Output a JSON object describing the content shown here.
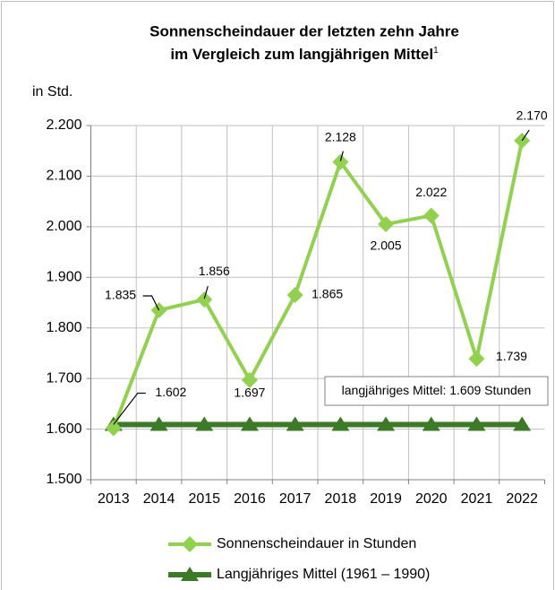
{
  "chart_data": {
    "type": "line",
    "title": [
      "Sonnenscheindauer der letzten zehn Jahre",
      "im Vergleich zum langjährigen Mittel"
    ],
    "title_footnote": "1",
    "y_label": "in Std.",
    "annotation": "langjähriges Mittel: 1.609 Stunden",
    "categories": [
      "2013",
      "2014",
      "2015",
      "2016",
      "2017",
      "2018",
      "2019",
      "2020",
      "2021",
      "2022"
    ],
    "series": [
      {
        "name": "Sonnenscheindauer in Stunden",
        "color": "#92d050",
        "marker": "diamond",
        "values": [
          1602,
          1835,
          1856,
          1697,
          1865,
          2128,
          2005,
          2022,
          1739,
          2170
        ],
        "value_labels": [
          "1.602",
          "1.835",
          "1.856",
          "1.697",
          "1.865",
          "2.128",
          "2.005",
          "2.022",
          "1.739",
          "2.170"
        ]
      },
      {
        "name": "Langjähriges Mittel (1961 – 1990)",
        "color": "#3d7a28",
        "marker": "triangle",
        "values": [
          1609,
          1609,
          1609,
          1609,
          1609,
          1609,
          1609,
          1609,
          1609,
          1609
        ]
      }
    ],
    "ylim": [
      1500,
      2200
    ],
    "yticks": [
      {
        "value": 1500,
        "label": "1.500"
      },
      {
        "value": 1600,
        "label": "1.600"
      },
      {
        "value": 1700,
        "label": "1.700"
      },
      {
        "value": 1800,
        "label": "1.800"
      },
      {
        "value": 1900,
        "label": "1.900"
      },
      {
        "value": 2000,
        "label": "2.000"
      },
      {
        "value": 2100,
        "label": "2.100"
      },
      {
        "value": 2200,
        "label": "2.200"
      }
    ],
    "grid": true,
    "legend": "bottom"
  }
}
